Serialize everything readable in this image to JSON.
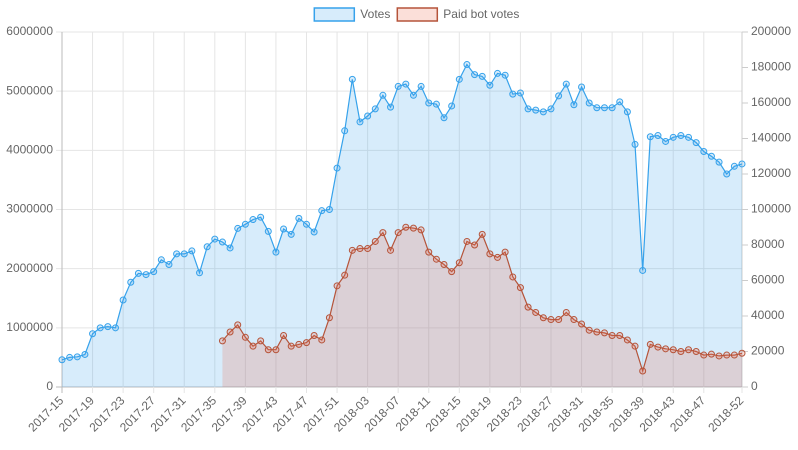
{
  "chart_data": {
    "type": "line",
    "categories": [
      "2017-15",
      null,
      null,
      null,
      "2017-19",
      null,
      null,
      null,
      "2017-23",
      null,
      null,
      null,
      "2017-27",
      null,
      null,
      null,
      "2017-31",
      null,
      null,
      null,
      "2017-35",
      null,
      null,
      null,
      "2017-39",
      null,
      null,
      null,
      "2017-43",
      null,
      null,
      null,
      "2017-47",
      null,
      null,
      null,
      "2017-51",
      null,
      null,
      null,
      "2018-03",
      null,
      null,
      null,
      "2018-07",
      null,
      null,
      null,
      "2018-11",
      null,
      null,
      null,
      "2018-15",
      null,
      null,
      null,
      "2018-19",
      null,
      null,
      null,
      "2018-23",
      null,
      null,
      null,
      "2018-27",
      null,
      null,
      null,
      "2018-31",
      null,
      null,
      null,
      "2018-35",
      null,
      null,
      null,
      "2018-39",
      null,
      null,
      null,
      "2018-43",
      null,
      null,
      null,
      "2018-47",
      null,
      null,
      null,
      null,
      "2018-52"
    ],
    "series": [
      {
        "name": "Votes",
        "color": "#36a2eb",
        "fill": "rgba(54,162,235,0.2)",
        "axis": "y",
        "values": [
          460000,
          500000,
          510000,
          550000,
          900000,
          1000000,
          1020000,
          1000000,
          1470000,
          1770000,
          1920000,
          1900000,
          1950000,
          2150000,
          2070000,
          2250000,
          2250000,
          2300000,
          1930000,
          2370000,
          2500000,
          2450000,
          2350000,
          2680000,
          2750000,
          2830000,
          2870000,
          2630000,
          2280000,
          2670000,
          2580000,
          2850000,
          2750000,
          2620000,
          2980000,
          3000000,
          3700000,
          4330000,
          5200000,
          4480000,
          4580000,
          4700000,
          4930000,
          4730000,
          5080000,
          5120000,
          4930000,
          5080000,
          4800000,
          4780000,
          4550000,
          4750000,
          5200000,
          5450000,
          5280000,
          5250000,
          5100000,
          5300000,
          5270000,
          4950000,
          4970000,
          4700000,
          4680000,
          4650000,
          4700000,
          4920000,
          5120000,
          4770000,
          5070000,
          4800000,
          4720000,
          4720000,
          4720000,
          4820000,
          4650000,
          4100000,
          1970000,
          4230000,
          4250000,
          4150000,
          4220000,
          4250000,
          4220000,
          4130000,
          3980000,
          3900000,
          3800000,
          3600000,
          3730000,
          3770000
        ]
      },
      {
        "name": "Paid bot votes",
        "color": "#b5543a",
        "fill": "rgba(235,110,80,0.22)",
        "axis": "y2",
        "values": [
          null,
          null,
          null,
          null,
          null,
          null,
          null,
          null,
          null,
          null,
          null,
          null,
          null,
          null,
          null,
          null,
          null,
          null,
          null,
          null,
          null,
          26000,
          31000,
          35000,
          28000,
          23000,
          26000,
          21000,
          21000,
          29000,
          23000,
          24000,
          25000,
          29000,
          26500,
          39000,
          57000,
          63000,
          77000,
          78000,
          78000,
          82000,
          87000,
          77000,
          87000,
          90000,
          89500,
          88500,
          76000,
          72000,
          69000,
          65000,
          70000,
          82000,
          80000,
          86000,
          75000,
          73000,
          76000,
          62000,
          56000,
          45000,
          42000,
          39000,
          38000,
          38000,
          42000,
          38000,
          35500,
          32000,
          31000,
          30500,
          29000,
          29000,
          26500,
          23000,
          9000,
          24000,
          22500,
          21500,
          21000,
          20000,
          21000,
          20000,
          18000,
          18500,
          17500,
          18000,
          18000,
          19000
        ]
      }
    ],
    "ylim": [
      0,
      6000000
    ],
    "yticks": [
      0,
      1000000,
      2000000,
      3000000,
      4000000,
      5000000,
      6000000
    ],
    "y2lim": [
      0,
      200000
    ],
    "y2ticks": [
      0,
      20000,
      40000,
      60000,
      80000,
      100000,
      120000,
      140000,
      160000,
      180000,
      200000
    ],
    "grid": true,
    "legend": "top"
  }
}
